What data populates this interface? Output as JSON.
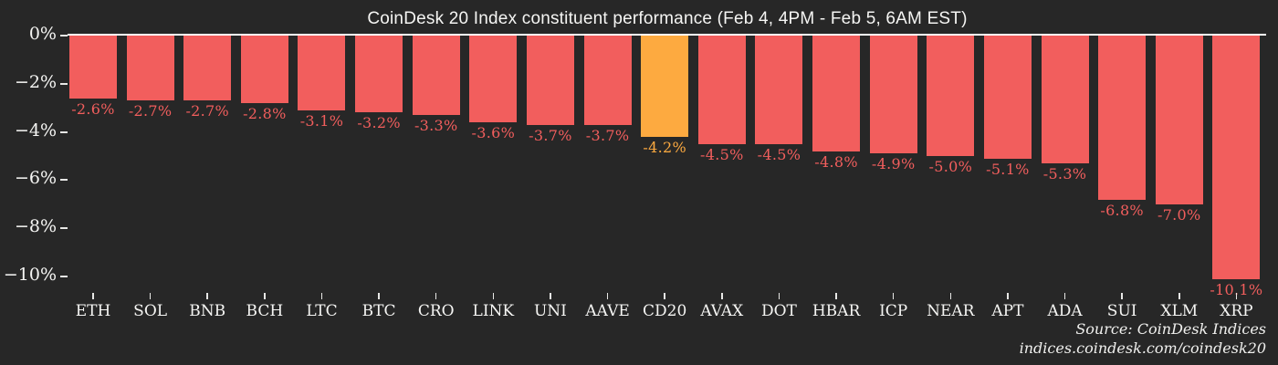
{
  "page": {
    "background_color": "#272727",
    "text_color": "#f5f5f3"
  },
  "chart_data": {
    "type": "bar",
    "title": "CoinDesk 20 Index constituent performance (Feb 4, 4PM - Feb 5, 6AM EST)",
    "categories": [
      "ETH",
      "SOL",
      "BNB",
      "BCH",
      "LTC",
      "BTC",
      "CRO",
      "LINK",
      "UNI",
      "AAVE",
      "CD20",
      "AVAX",
      "DOT",
      "HBAR",
      "ICP",
      "NEAR",
      "APT",
      "ADA",
      "SUI",
      "XLM",
      "XRP"
    ],
    "values": [
      -2.6,
      -2.7,
      -2.7,
      -2.8,
      -3.1,
      -3.2,
      -3.3,
      -3.6,
      -3.7,
      -3.7,
      -4.2,
      -4.5,
      -4.5,
      -4.8,
      -4.9,
      -5.0,
      -5.1,
      -5.3,
      -6.8,
      -7.0,
      -10.1
    ],
    "bar_labels": [
      "-2.6%",
      "-2.7%",
      "-2.7%",
      "-2.8%",
      "-3.1%",
      "-3.2%",
      "-3.3%",
      "-3.6%",
      "-3.7%",
      "-3.7%",
      "-4.2%",
      "-4.5%",
      "-4.5%",
      "-4.8%",
      "-4.9%",
      "-5.0%",
      "-5.1%",
      "-5.3%",
      "-6.8%",
      "-7.0%",
      "-10.1%"
    ],
    "highlight_category": "CD20",
    "bar_color": "#f25e5d",
    "highlight_color": "#fdaa40",
    "xlabel": "",
    "ylabel": "",
    "y_axis": {
      "tick_labels": [
        "0%",
        "−2%",
        "−4%",
        "−6%",
        "−8%",
        "−10%"
      ],
      "tick_values": [
        0,
        -2,
        -4,
        -6,
        -8,
        -10
      ],
      "ylim": [
        -10.8,
        0
      ]
    },
    "grid": "off",
    "legend": "none",
    "source": {
      "line1": "Source: CoinDesk Indices",
      "line2": "indices.coindesk.com/coindesk20"
    }
  }
}
